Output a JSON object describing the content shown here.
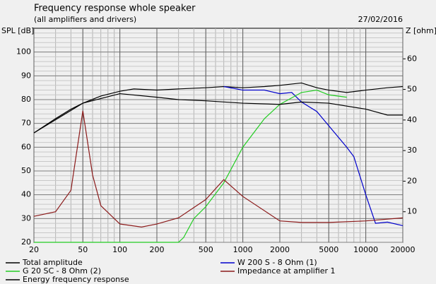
{
  "chart_data": {
    "type": "line",
    "title": "Frequency response whole speaker",
    "subtitle": "(all amplifiers and drivers)",
    "date": "27/02/2016",
    "y_label": "SPL [dB]",
    "y2_label": "Z [ohm]",
    "log_x": true,
    "grid": true,
    "xlim": [
      20,
      20000
    ],
    "xticks": [
      20,
      50,
      100,
      200,
      500,
      1000,
      2000,
      5000,
      10000,
      20000
    ],
    "ylim": [
      20,
      110
    ],
    "yticks": [
      20,
      30,
      40,
      50,
      60,
      70,
      80,
      90,
      100
    ],
    "y2lim": [
      0,
      70
    ],
    "y2ticks": [
      10,
      20,
      30,
      40,
      50,
      60
    ],
    "series": [
      {
        "name": "Total amplitude",
        "color": "#000000",
        "x": [
          20,
          30,
          40,
          50,
          70,
          100,
          130,
          200,
          300,
          500,
          700,
          1000,
          1500,
          2000,
          3000,
          4000,
          5000,
          7000,
          10000,
          15000,
          20000
        ],
        "values": [
          66,
          72,
          76,
          78.5,
          81.5,
          83.5,
          84.5,
          84,
          84.5,
          85,
          85.5,
          85,
          85.5,
          86,
          87,
          85,
          84,
          83,
          84,
          85,
          85.5
        ]
      },
      {
        "name": "W 200 S - 8 Ohm (1)",
        "color": "#0000cc",
        "x": [
          700,
          1000,
          1500,
          2000,
          2500,
          3000,
          4000,
          5000,
          7000,
          8000,
          10000,
          12000,
          15000,
          20000
        ],
        "values": [
          85.5,
          84,
          84,
          82.5,
          83,
          79,
          75,
          69,
          60,
          56,
          40,
          28,
          28.5,
          27
        ]
      },
      {
        "name": "G 20 SC - 8 Ohm (2)",
        "color": "#22cc22",
        "x": [
          20,
          300,
          330,
          400,
          500,
          700,
          1000,
          1500,
          2000,
          3000,
          4000,
          5000,
          7000
        ],
        "values": [
          20,
          20,
          22,
          30,
          35,
          45,
          60,
          72,
          78,
          83,
          84,
          82,
          81
        ]
      },
      {
        "name": "Impedance at amplifier 1",
        "color": "#8b1a1a",
        "axis": "y2",
        "x": [
          20,
          30,
          40,
          50,
          60,
          70,
          100,
          150,
          200,
          300,
          500,
          700,
          1000,
          2000,
          3000,
          5000,
          10000,
          20000
        ],
        "values": [
          8.5,
          10,
          17,
          43,
          22,
          12,
          6,
          5,
          6,
          8,
          14,
          20.5,
          15,
          7,
          6.5,
          6.5,
          7,
          8
        ]
      },
      {
        "name": "Energy frequency response",
        "color": "#000000",
        "x": [
          20,
          50,
          100,
          200,
          300,
          500,
          1000,
          2000,
          3000,
          5000,
          10000,
          15000,
          20000
        ],
        "values": [
          66,
          78.5,
          82.5,
          81,
          80,
          79.5,
          78.5,
          78,
          79,
          78.5,
          76,
          73.5,
          73.5
        ]
      }
    ]
  }
}
